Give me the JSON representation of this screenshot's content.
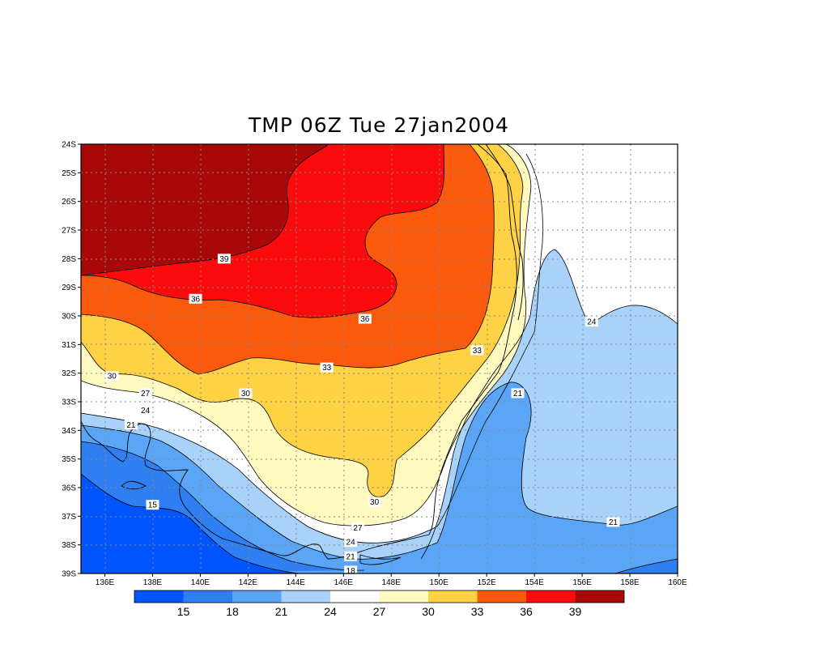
{
  "title": "TMP 06Z Tue 27jan2004",
  "colors": {
    "lt15": "#0055ff",
    "c15_18": "#2f7ef2",
    "c18_21": "#5aa5f5",
    "c21_24": "#a8d2fa",
    "c24_27": "#ffffff",
    "c27_30": "#fefac0",
    "c30_33": "#fdd245",
    "c33_36": "#fb5a0c",
    "c36_39": "#fb0b0b",
    "gt39": "#a80808"
  },
  "chart_data": {
    "type": "heatmap",
    "variable": "TMP",
    "lat_ticks": [
      "24S",
      "25S",
      "26S",
      "27S",
      "28S",
      "29S",
      "30S",
      "31S",
      "32S",
      "33S",
      "34S",
      "35S",
      "36S",
      "37S",
      "38S",
      "39S"
    ],
    "lon_ticks": [
      "136E",
      "138E",
      "140E",
      "142E",
      "144E",
      "146E",
      "148E",
      "150E",
      "152E",
      "154E",
      "156E",
      "158E",
      "160E"
    ],
    "lat_range": [
      -39,
      -24
    ],
    "lon_range": [
      135,
      160
    ],
    "grid": true,
    "contour_levels": [
      15,
      18,
      21,
      24,
      27,
      30,
      33,
      36,
      39
    ],
    "colorbar_labels": [
      "15",
      "18",
      "21",
      "24",
      "27",
      "30",
      "33",
      "36",
      "39"
    ],
    "contour_labels": [
      {
        "text": "39",
        "lon": 141.0,
        "lat": -28.0
      },
      {
        "text": "36",
        "lon": 139.8,
        "lat": -29.4
      },
      {
        "text": "36",
        "lon": 146.9,
        "lat": -30.1
      },
      {
        "text": "33",
        "lon": 145.3,
        "lat": -31.8
      },
      {
        "text": "33",
        "lon": 151.6,
        "lat": -31.2
      },
      {
        "text": "30",
        "lon": 136.3,
        "lat": -32.1
      },
      {
        "text": "30",
        "lon": 141.9,
        "lat": -32.7
      },
      {
        "text": "30",
        "lon": 147.3,
        "lat": -36.5
      },
      {
        "text": "27",
        "lon": 137.7,
        "lat": -32.7
      },
      {
        "text": "24",
        "lon": 137.7,
        "lat": -33.3
      },
      {
        "text": "21",
        "lon": 137.1,
        "lat": -33.8
      },
      {
        "text": "27",
        "lon": 146.6,
        "lat": -37.4
      },
      {
        "text": "24",
        "lon": 146.3,
        "lat": -37.9
      },
      {
        "text": "21",
        "lon": 146.3,
        "lat": -38.4
      },
      {
        "text": "18",
        "lon": 146.3,
        "lat": -38.9
      },
      {
        "text": "15",
        "lon": 138.0,
        "lat": -36.6
      },
      {
        "text": "24",
        "lon": 156.4,
        "lat": -30.2
      },
      {
        "text": "21",
        "lon": 153.3,
        "lat": -32.7
      },
      {
        "text": "21",
        "lon": 157.3,
        "lat": -37.2
      }
    ]
  }
}
